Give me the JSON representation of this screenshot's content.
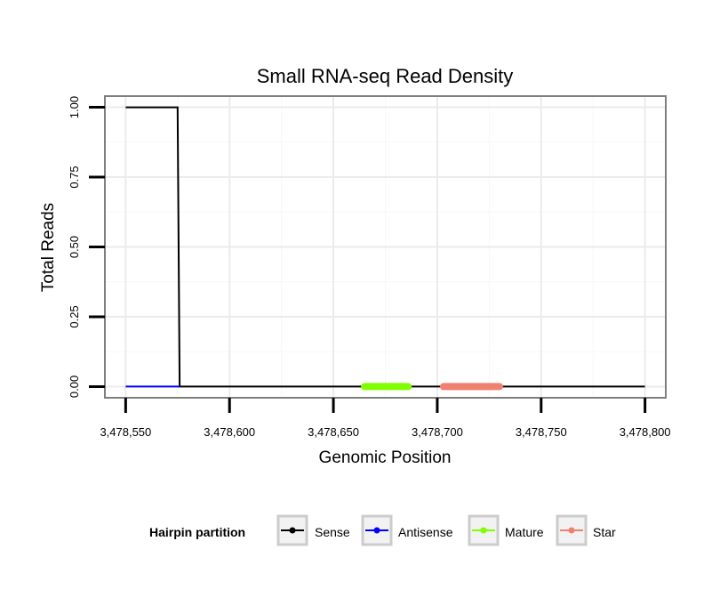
{
  "chart_data": {
    "type": "line",
    "title": "Small RNA-seq Read Density",
    "xlabel": "Genomic Position",
    "ylabel": "Total Reads",
    "xlim": [
      3478540,
      3478810
    ],
    "ylim": [
      -0.04,
      1.04
    ],
    "x_ticks": [
      3478550,
      3478600,
      3478650,
      3478700,
      3478750,
      3478800
    ],
    "x_tick_labels": [
      "3,478,550",
      "3,478,600",
      "3,478,650",
      "3,478,700",
      "3,478,750",
      "3,478,800"
    ],
    "y_ticks": [
      0,
      0.25,
      0.5,
      0.75,
      1
    ],
    "y_tick_labels": [
      "0.00",
      "0.25",
      "0.50",
      "0.75",
      "1.00"
    ],
    "grid": true,
    "legend_position": "bottom",
    "legend_title": "Hairpin partition",
    "series": [
      {
        "name": "Sense",
        "color": "#000000",
        "width": 2,
        "points": [
          [
            3478550,
            1
          ],
          [
            3478575,
            1
          ],
          [
            3478576,
            0
          ],
          [
            3478800,
            0
          ]
        ]
      },
      {
        "name": "Antisense",
        "color": "#0000ff",
        "width": 2,
        "points": [
          [
            3478550,
            0
          ],
          [
            3478576,
            0
          ]
        ]
      },
      {
        "name": "Mature",
        "color": "#80ff00",
        "width": 8,
        "points": [
          [
            3478665,
            0
          ],
          [
            3478686,
            0
          ]
        ]
      },
      {
        "name": "Star",
        "color": "#f08070",
        "width": 8,
        "points": [
          [
            3478703,
            0
          ],
          [
            3478730,
            0
          ]
        ]
      }
    ]
  }
}
